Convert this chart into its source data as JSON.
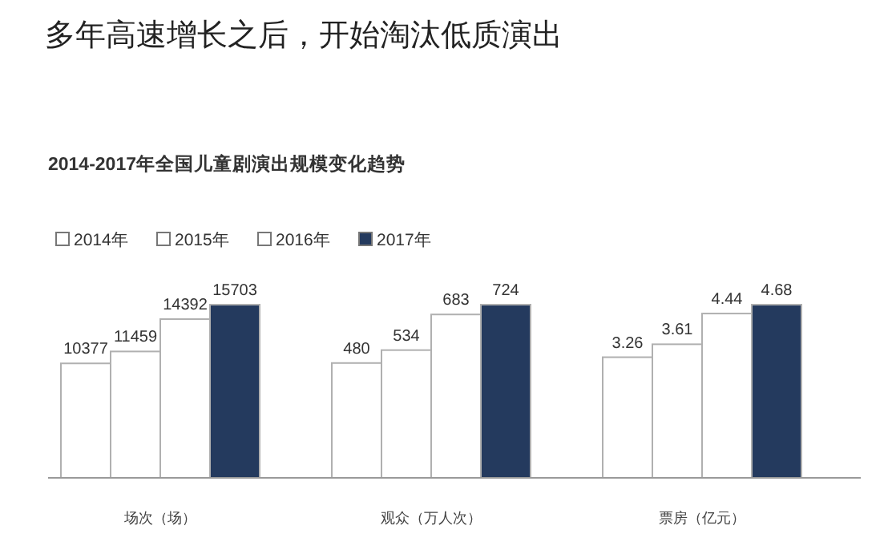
{
  "chart_data": [
    {
      "type": "bar",
      "title": "多年高速增长之后，开始淘汰低质演出",
      "subtitle": "2014-2017年全国儿童剧演出规模变化趋势",
      "xlabel": "场次（场）",
      "categories": [
        null,
        null,
        null,
        null
      ],
      "data_labels": true,
      "annotations": [
        "2014年",
        "2015年",
        "2016年",
        "2017年"
      ],
      "colors": [
        "#ffffff",
        "#ffffff",
        "#ffffff",
        "#243a5e"
      ],
      "values": [
        10377,
        11459,
        14392,
        15703
      ]
    },
    {
      "type": "bar",
      "xlabel": "观众（万人次）",
      "categories": [
        null,
        null,
        null,
        null
      ],
      "data_labels": true,
      "colors": [
        "#ffffff",
        "#ffffff",
        "#ffffff",
        "#243a5e"
      ],
      "values": [
        480,
        534,
        683,
        724
      ]
    },
    {
      "type": "bar",
      "xlabel": "票房（亿元）",
      "categories": [
        null,
        null,
        null,
        null
      ],
      "data_labels": true,
      "colors": [
        "#ffffff",
        "#ffffff",
        "#ffffff",
        "#243a5e"
      ],
      "values": [
        3.26,
        3.61,
        4.44,
        4.68
      ]
    }
  ]
}
